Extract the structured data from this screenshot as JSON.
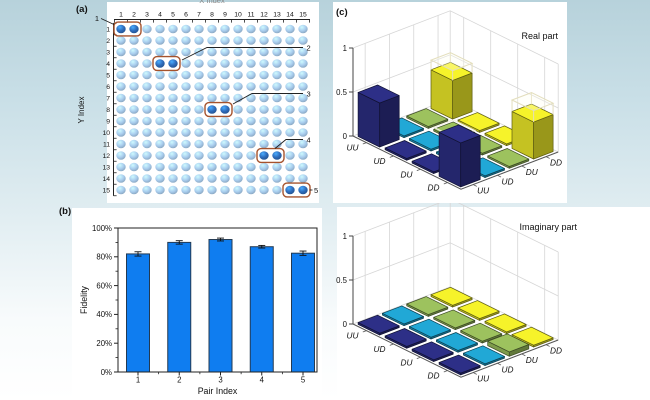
{
  "figure": {
    "panel_labels": {
      "a": "(a)",
      "b": "(b)",
      "c": "(c)"
    }
  },
  "colors": {
    "background_top": "#b7d2db",
    "background_bottom": "#ffffff",
    "dot_light": "#a9cdee",
    "dot_dark": "#2e6cbc",
    "pair_box": "#a5522c",
    "bar_fill": "#0f7df0",
    "bar3d_columns": [
      "#2d2f87",
      "#21a8d6",
      "#9dc25e",
      "#f6f32a"
    ],
    "wireframe": "#e3debd"
  },
  "chart_data": [
    {
      "id": "pair-grid",
      "type": "scatter",
      "panel": "a",
      "xlabel": "X Index",
      "ylabel": "Y Index",
      "rows": 15,
      "cols": 15,
      "x_ticks": [
        "1",
        "2",
        "3",
        "4",
        "5",
        "6",
        "7",
        "8",
        "9",
        "10",
        "11",
        "12",
        "13",
        "14",
        "15"
      ],
      "y_ticks": [
        "1",
        "2",
        "3",
        "4",
        "5",
        "6",
        "7",
        "8",
        "9",
        "10",
        "11",
        "12",
        "13",
        "14",
        "15"
      ],
      "pairs": [
        {
          "label": "1",
          "row": 1,
          "cols": [
            1,
            2
          ]
        },
        {
          "label": "2",
          "row": 4,
          "cols": [
            4,
            5
          ]
        },
        {
          "label": "3",
          "row": 8,
          "cols": [
            8,
            9
          ]
        },
        {
          "label": "4",
          "row": 12,
          "cols": [
            12,
            13
          ]
        },
        {
          "label": "5",
          "row": 15,
          "cols": [
            14,
            15
          ]
        }
      ]
    },
    {
      "id": "fidelity-bar",
      "type": "bar",
      "panel": "b",
      "xlabel": "Pair Index",
      "ylabel": "Fidelity",
      "categories": [
        "1",
        "2",
        "3",
        "4",
        "5"
      ],
      "values": [
        82,
        90,
        92,
        87,
        82.5
      ],
      "errors": [
        1.5,
        1.2,
        1.0,
        0.9,
        1.5
      ],
      "ylim": [
        0,
        100
      ],
      "y_tick_labels": [
        "0%",
        "20%",
        "40%",
        "60%",
        "80%",
        "100%"
      ]
    },
    {
      "id": "density-matrix-real",
      "type": "bar3d",
      "panel": "c",
      "title": "Real part",
      "row_labels": [
        "UU",
        "UD",
        "DU",
        "DD"
      ],
      "col_labels": [
        "UU",
        "UD",
        "DU",
        "DD"
      ],
      "z_ticks": [
        "0",
        "0.5",
        "1"
      ],
      "zlim": [
        0,
        1
      ],
      "values": [
        [
          0.5,
          0.01,
          0.01,
          0.44
        ],
        [
          0.01,
          0.01,
          0.01,
          0.01
        ],
        [
          0.01,
          0.01,
          0.01,
          0.01
        ],
        [
          0.5,
          0.01,
          0.01,
          0.42
        ]
      ],
      "ideal_wireframes": [
        {
          "row": 0,
          "col": 3,
          "value": 0.5
        },
        {
          "row": 3,
          "col": 3,
          "value": 0.5
        },
        {
          "row": 1,
          "col": 2,
          "value": 0
        }
      ]
    },
    {
      "id": "density-matrix-imag",
      "type": "bar3d",
      "panel": "c",
      "title": "Imaginary part",
      "row_labels": [
        "UU",
        "UD",
        "DU",
        "DD"
      ],
      "col_labels": [
        "UU",
        "UD",
        "DU",
        "DD"
      ],
      "z_ticks": [
        "0",
        "0.5",
        "1"
      ],
      "zlim": [
        0,
        1
      ],
      "values": [
        [
          0.01,
          0.01,
          0.01,
          0.01
        ],
        [
          0.01,
          0.01,
          0.01,
          0.01
        ],
        [
          0.01,
          0.01,
          0.01,
          0.01
        ],
        [
          0.01,
          0.01,
          0.05,
          0.01
        ]
      ],
      "ideal_wireframes": []
    }
  ]
}
